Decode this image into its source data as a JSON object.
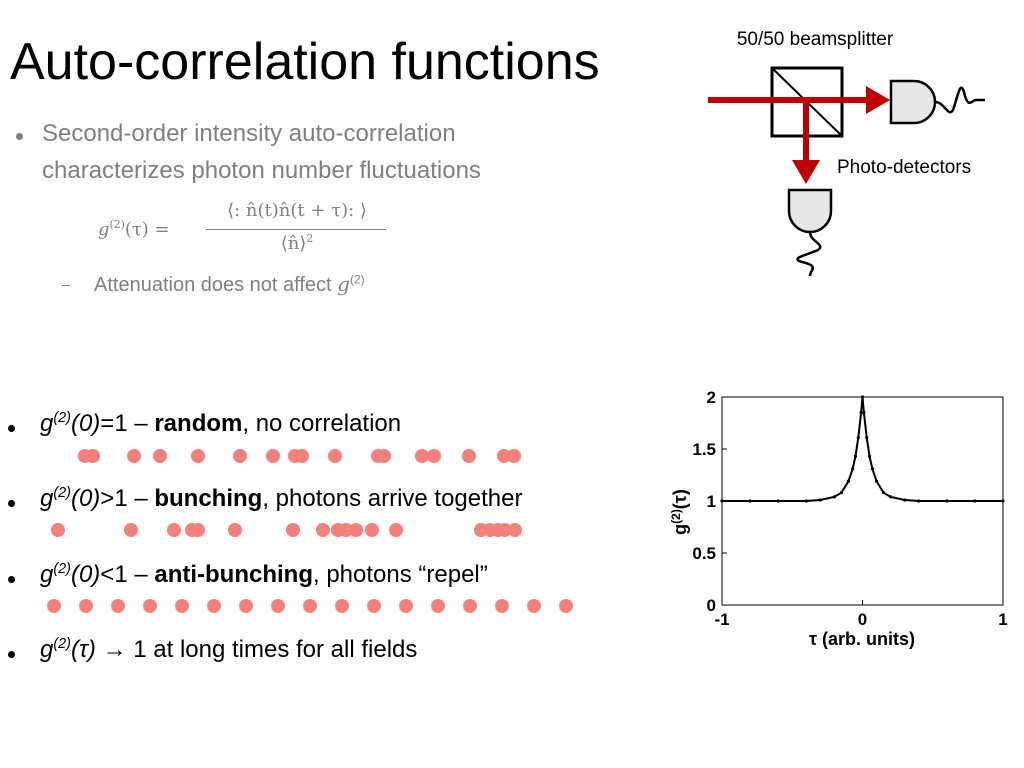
{
  "title": "Auto-correlation functions",
  "intro": {
    "lines": [
      "Second-order intensity auto-correlation",
      "characterizes photon number fluctuations"
    ]
  },
  "formula": {
    "lhs_g": "g",
    "lhs_sup": "(2)",
    "lhs_arg": "(τ) =",
    "numerator": "⟨: n̂(t)n̂(t + τ): ⟩",
    "denominator": "⟨n̂⟩",
    "denominator_sup": "2"
  },
  "note": {
    "text": "Attenuation does not affect",
    "g": "g",
    "sup": "(2)"
  },
  "bullets": [
    {
      "g": "g",
      "sup": "(2)",
      "arg": "(0)",
      "rest1": "=1 – ",
      "bold": "random",
      "rest2": ", no correlation"
    },
    {
      "g": "g",
      "sup": "(2)",
      "arg": "(0)",
      "rest1": ">1 – ",
      "bold": "bunching",
      "rest2": ", photons arrive together"
    },
    {
      "g": "g",
      "sup": "(2)",
      "arg": "(0)",
      "rest1": "<1 – ",
      "bold": "anti-bunching",
      "rest2": ", photons “repel”"
    },
    {
      "g": "g",
      "sup": "(2)",
      "arg": "(τ)",
      "rest1": " → 1 at long times for all fields"
    }
  ],
  "diagram": {
    "beamsplitter_label": "50/50 beamsplitter",
    "detectors_label": "Photo-detectors"
  },
  "chart_data": {
    "type": "line",
    "x_label": "τ (arb. units)",
    "y_label": {
      "base": "g",
      "sup": "(2)",
      "arg": "(τ)"
    },
    "x": [
      -1,
      -0.8,
      -0.6,
      -0.4,
      -0.3,
      -0.2,
      -0.15,
      -0.1,
      -0.07,
      -0.05,
      -0.03,
      -0.01,
      0,
      0.01,
      0.03,
      0.05,
      0.07,
      0.1,
      0.15,
      0.2,
      0.3,
      0.4,
      0.6,
      0.8,
      1
    ],
    "values": [
      1,
      1,
      1,
      1,
      1.01,
      1.04,
      1.08,
      1.19,
      1.31,
      1.43,
      1.61,
      1.85,
      2,
      1.85,
      1.61,
      1.43,
      1.31,
      1.19,
      1.08,
      1.04,
      1.01,
      1,
      1,
      1,
      1
    ],
    "color": "#000000",
    "xlim": [
      -1,
      1
    ],
    "ylim": [
      0,
      2
    ],
    "xticks": [
      -1,
      0,
      1
    ],
    "yticks": [
      0,
      0.5,
      1,
      1.5,
      2
    ]
  }
}
